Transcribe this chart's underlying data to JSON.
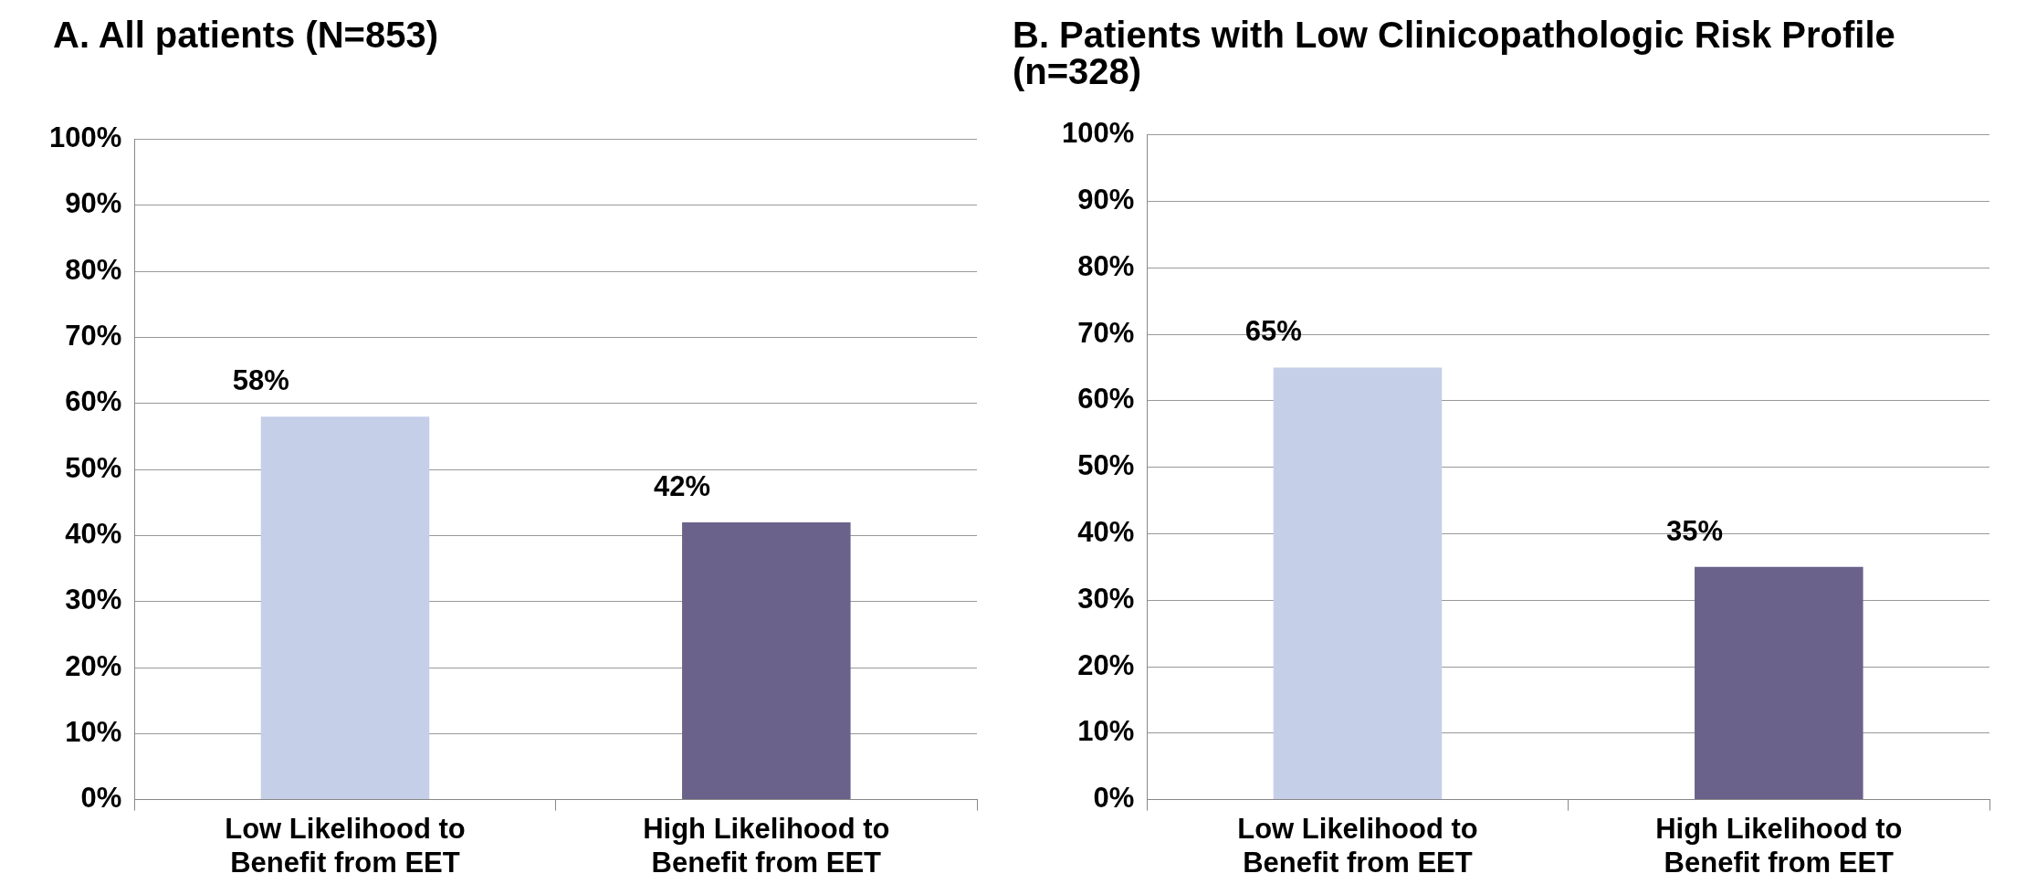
{
  "chart_data": [
    {
      "type": "bar",
      "title": "A. All patients (N=853)",
      "categories": [
        "Low Likelihood to Benefit from EET",
        "High Likelihood to Benefit from EET"
      ],
      "values": [
        58,
        42
      ],
      "colors": [
        "#c5cfe8",
        "#6a628a"
      ],
      "value_labels": [
        "58%",
        "42%"
      ],
      "ylim": [
        0,
        100
      ],
      "yticks": [
        {
          "value": 0,
          "label": "0%"
        },
        {
          "value": 10,
          "label": "10%"
        },
        {
          "value": 20,
          "label": "20%"
        },
        {
          "value": 30,
          "label": "30%"
        },
        {
          "value": 40,
          "label": "40%"
        },
        {
          "value": 50,
          "label": "50%"
        },
        {
          "value": 60,
          "label": "60%"
        },
        {
          "value": 70,
          "label": "70%"
        },
        {
          "value": 80,
          "label": "80%"
        },
        {
          "value": 90,
          "label": "90%"
        },
        {
          "value": 100,
          "label": "100%"
        }
      ],
      "grid": "y",
      "legend": false
    },
    {
      "type": "bar",
      "title": "B. Patients with Low Clinicopathologic Risk Profile (n=328)",
      "categories": [
        "Low Likelihood to Benefit from EET",
        "High Likelihood to Benefit from EET"
      ],
      "values": [
        65,
        35
      ],
      "colors": [
        "#c5cfe8",
        "#6a628a"
      ],
      "value_labels": [
        "65%",
        "35%"
      ],
      "ylim": [
        0,
        100
      ],
      "yticks": [
        {
          "value": 0,
          "label": "0%"
        },
        {
          "value": 10,
          "label": "10%"
        },
        {
          "value": 20,
          "label": "20%"
        },
        {
          "value": 30,
          "label": "30%"
        },
        {
          "value": 40,
          "label": "40%"
        },
        {
          "value": 50,
          "label": "50%"
        },
        {
          "value": 60,
          "label": "60%"
        },
        {
          "value": 70,
          "label": "70%"
        },
        {
          "value": 80,
          "label": "80%"
        },
        {
          "value": 90,
          "label": "90%"
        },
        {
          "value": 100,
          "label": "100%"
        }
      ],
      "grid": "y",
      "legend": false
    }
  ]
}
